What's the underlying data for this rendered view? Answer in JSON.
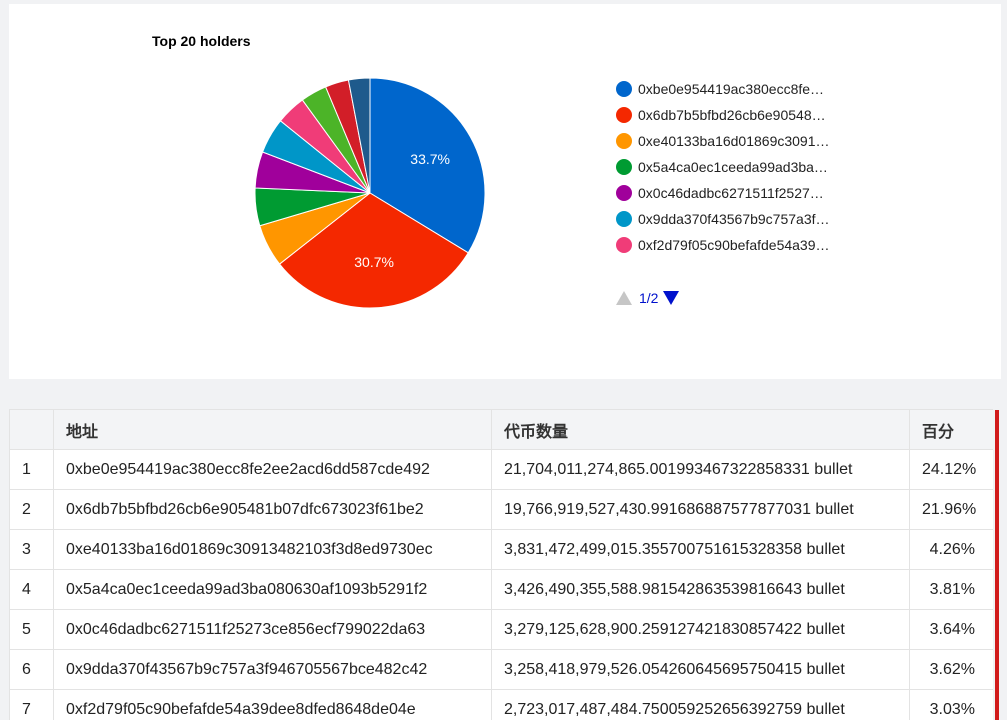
{
  "chart": {
    "title": "Top 20 holders",
    "pager": "1/2",
    "legend": [
      {
        "label": "0xbe0e954419ac380ecc8fe…",
        "color": "#0066cc"
      },
      {
        "label": "0x6db7b5bfbd26cb6e90548…",
        "color": "#f42800"
      },
      {
        "label": "0xe40133ba16d01869c3091…",
        "color": "#ff9600"
      },
      {
        "label": "0x5a4ca0ec1ceeda99ad3ba…",
        "color": "#009b32"
      },
      {
        "label": "0x0c46dadbc6271511f2527…",
        "color": "#a0009b"
      },
      {
        "label": "0x9dda370f43567b9c757a3f…",
        "color": "#0096c8"
      },
      {
        "label": "0xf2d79f05c90befafde54a39…",
        "color": "#f03c78"
      }
    ]
  },
  "chart_data": {
    "type": "pie",
    "title": "Top 20 holders",
    "slices": [
      {
        "value": 33.7,
        "color": "#0066cc",
        "label": "33.7%"
      },
      {
        "value": 30.7,
        "color": "#f42800",
        "label": "30.7%"
      },
      {
        "value": 6.0,
        "color": "#ff9600",
        "label": ""
      },
      {
        "value": 5.3,
        "color": "#009b32",
        "label": ""
      },
      {
        "value": 5.1,
        "color": "#a0009b",
        "label": ""
      },
      {
        "value": 5.0,
        "color": "#0096c8",
        "label": ""
      },
      {
        "value": 4.2,
        "color": "#f03c78",
        "label": ""
      },
      {
        "value": 3.7,
        "color": "#4cb428",
        "label": ""
      },
      {
        "value": 3.3,
        "color": "#d21e28",
        "label": ""
      },
      {
        "value": 3.0,
        "color": "#1e5a8c",
        "label": ""
      }
    ]
  },
  "table": {
    "headers": {
      "index": "",
      "address": "地址",
      "amount": "代币数量",
      "percent": "百分"
    },
    "rows": [
      {
        "index": "1",
        "address": "0xbe0e954419ac380ecc8fe2ee2acd6dd587cde492",
        "amount": "21,704,011,274,865.001993467322858331 bullet",
        "percent": "24.12%"
      },
      {
        "index": "2",
        "address": "0x6db7b5bfbd26cb6e905481b07dfc673023f61be2",
        "amount": "19,766,919,527,430.991686887577877031 bullet",
        "percent": "21.96%"
      },
      {
        "index": "3",
        "address": "0xe40133ba16d01869c30913482103f3d8ed9730ec",
        "amount": "3,831,472,499,015.355700751615328358 bullet",
        "percent": "4.26%"
      },
      {
        "index": "4",
        "address": "0x5a4ca0ec1ceeda99ad3ba080630af1093b5291f2",
        "amount": "3,426,490,355,588.981542863539816643 bullet",
        "percent": "3.81%"
      },
      {
        "index": "5",
        "address": "0x0c46dadbc6271511f25273ce856ecf799022da63",
        "amount": "3,279,125,628,900.259127421830857422 bullet",
        "percent": "3.64%"
      },
      {
        "index": "6",
        "address": "0x9dda370f43567b9c757a3f946705567bce482c42",
        "amount": "3,258,418,979,526.054260645695750415 bullet",
        "percent": "3.62%"
      },
      {
        "index": "7",
        "address": "0xf2d79f05c90befafde54a39dee8dfed8648de04e",
        "amount": "2,723,017,487,484.750059252656392759 bullet",
        "percent": "3.03%"
      }
    ]
  },
  "colors": {
    "scroll_marker": "#d11b1b",
    "pager_active": "#0011cc",
    "pager_disabled": "#c6c6c6"
  }
}
